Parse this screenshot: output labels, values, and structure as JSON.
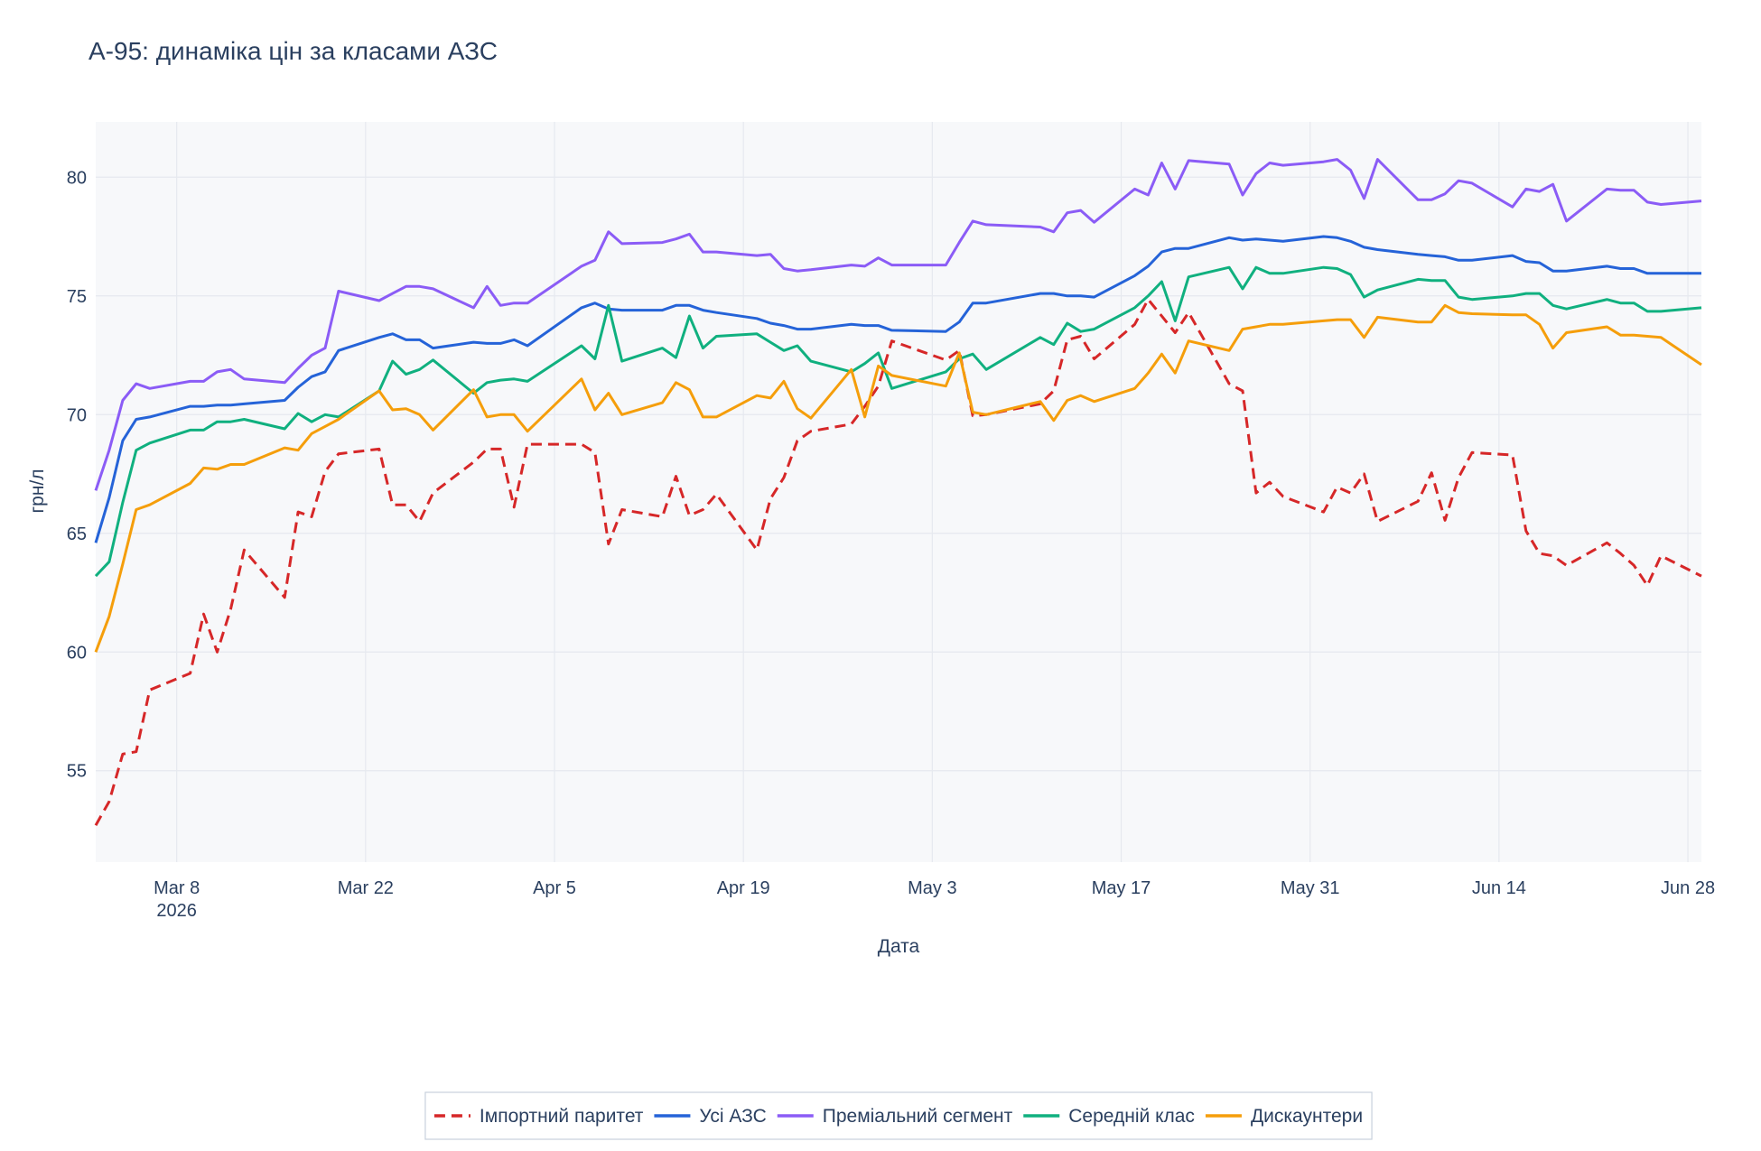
{
  "chart_data": {
    "type": "line",
    "title": "А-95: динаміка цін за класами АЗС",
    "x_label": "Дата",
    "y_label": "грн/л",
    "grid": true,
    "legend": "bottom",
    "xlim": [
      "2026-03-02",
      "2026-06-29"
    ],
    "ylim": [
      51.15,
      82.33
    ],
    "yticks": [
      55,
      60,
      65,
      70,
      75,
      80
    ],
    "xticks": [
      {
        "value": "2026-03-08",
        "label": "Mar 8\n2026"
      },
      {
        "value": "2026-03-22",
        "label": "Mar 22"
      },
      {
        "value": "2026-04-05",
        "label": "Apr 5"
      },
      {
        "value": "2026-04-19",
        "label": "Apr 19"
      },
      {
        "value": "2026-05-03",
        "label": "May 3"
      },
      {
        "value": "2026-05-17",
        "label": "May 17"
      },
      {
        "value": "2026-05-31",
        "label": "May 31"
      },
      {
        "value": "2026-06-14",
        "label": "Jun 14"
      },
      {
        "value": "2026-06-28",
        "label": "Jun 28"
      }
    ],
    "x": [
      "2026-03-02",
      "2026-03-03",
      "2026-03-04",
      "2026-03-05",
      "2026-03-06",
      "2026-03-09",
      "2026-03-10",
      "2026-03-11",
      "2026-03-12",
      "2026-03-13",
      "2026-03-16",
      "2026-03-17",
      "2026-03-18",
      "2026-03-19",
      "2026-03-20",
      "2026-03-23",
      "2026-03-24",
      "2026-03-25",
      "2026-03-26",
      "2026-03-27",
      "2026-03-30",
      "2026-03-31",
      "2026-04-01",
      "2026-04-02",
      "2026-04-03",
      "2026-04-07",
      "2026-04-08",
      "2026-04-09",
      "2026-04-10",
      "2026-04-13",
      "2026-04-14",
      "2026-04-15",
      "2026-04-16",
      "2026-04-17",
      "2026-04-20",
      "2026-04-21",
      "2026-04-22",
      "2026-04-23",
      "2026-04-24",
      "2026-04-27",
      "2026-04-28",
      "2026-04-29",
      "2026-04-30",
      "2026-05-04",
      "2026-05-05",
      "2026-05-06",
      "2026-05-07",
      "2026-05-11",
      "2026-05-12",
      "2026-05-13",
      "2026-05-14",
      "2026-05-15",
      "2026-05-18",
      "2026-05-19",
      "2026-05-20",
      "2026-05-21",
      "2026-05-22",
      "2026-05-25",
      "2026-05-26",
      "2026-05-27",
      "2026-05-28",
      "2026-05-29",
      "2026-06-01",
      "2026-06-02",
      "2026-06-03",
      "2026-06-04",
      "2026-06-05",
      "2026-06-08",
      "2026-06-09",
      "2026-06-10",
      "2026-06-11",
      "2026-06-12",
      "2026-06-15",
      "2026-06-16",
      "2026-06-17",
      "2026-06-18",
      "2026-06-19",
      "2026-06-22",
      "2026-06-23",
      "2026-06-24",
      "2026-06-25",
      "2026-06-26",
      "2026-06-29"
    ],
    "series": [
      {
        "name": "Імпортний паритет",
        "color": "#d62728",
        "dash": "dash",
        "values": [
          52.7,
          53.7,
          55.7,
          55.8,
          58.4,
          59.1,
          61.6,
          60.0,
          61.8,
          64.3,
          62.3,
          65.9,
          65.7,
          67.6,
          68.35,
          68.55,
          66.2,
          66.2,
          65.5,
          66.7,
          68.0,
          68.55,
          68.55,
          66.1,
          68.75,
          68.75,
          68.4,
          64.55,
          66.0,
          65.7,
          67.4,
          65.75,
          66.0,
          66.65,
          64.3,
          66.45,
          67.35,
          68.9,
          69.3,
          69.6,
          70.35,
          71.2,
          73.1,
          72.3,
          72.7,
          69.95,
          70.0,
          70.45,
          71.0,
          73.15,
          73.3,
          72.35,
          73.8,
          74.85,
          74.15,
          73.45,
          74.3,
          71.3,
          71.0,
          66.7,
          67.15,
          66.55,
          65.9,
          66.95,
          66.7,
          67.5,
          65.5,
          66.35,
          67.55,
          65.55,
          67.35,
          68.4,
          68.3,
          65.1,
          64.15,
          64.05,
          63.65,
          64.6,
          64.15,
          63.65,
          62.8,
          64.05,
          63.2
        ]
      },
      {
        "name": "Усі АЗС",
        "color": "#2563d8",
        "values": [
          64.6,
          66.5,
          68.9,
          69.8,
          69.9,
          70.35,
          70.35,
          70.4,
          70.4,
          70.45,
          70.6,
          71.15,
          71.6,
          71.8,
          72.7,
          73.25,
          73.4,
          73.15,
          73.15,
          72.8,
          73.05,
          73.0,
          73.0,
          73.15,
          72.9,
          74.5,
          74.7,
          74.45,
          74.4,
          74.4,
          74.6,
          74.6,
          74.4,
          74.3,
          74.05,
          73.85,
          73.75,
          73.6,
          73.6,
          73.8,
          73.75,
          73.75,
          73.55,
          73.5,
          73.9,
          74.7,
          74.7,
          75.1,
          75.1,
          75.0,
          75.0,
          74.95,
          75.85,
          76.25,
          76.85,
          77.0,
          77.0,
          77.45,
          77.35,
          77.4,
          77.35,
          77.3,
          77.5,
          77.45,
          77.3,
          77.05,
          76.95,
          76.75,
          76.7,
          76.65,
          76.5,
          76.5,
          76.7,
          76.45,
          76.4,
          76.05,
          76.05,
          76.25,
          76.15,
          76.15,
          75.95,
          75.95,
          75.95
        ]
      },
      {
        "name": "Преміальний сегмент",
        "color": "#8b5cf6",
        "values": [
          66.8,
          68.5,
          70.6,
          71.3,
          71.1,
          71.4,
          71.4,
          71.8,
          71.9,
          71.5,
          71.35,
          71.95,
          72.5,
          72.8,
          75.2,
          74.8,
          75.1,
          75.4,
          75.4,
          75.3,
          74.5,
          75.4,
          74.6,
          74.7,
          74.7,
          76.25,
          76.5,
          77.7,
          77.2,
          77.25,
          77.4,
          77.6,
          76.85,
          76.85,
          76.7,
          76.75,
          76.15,
          76.05,
          76.1,
          76.3,
          76.25,
          76.6,
          76.3,
          76.3,
          77.25,
          78.15,
          78.0,
          77.9,
          77.7,
          78.5,
          78.6,
          78.1,
          79.5,
          79.25,
          80.6,
          79.5,
          80.7,
          80.55,
          79.25,
          80.15,
          80.6,
          80.5,
          80.65,
          80.75,
          80.3,
          79.1,
          80.75,
          79.05,
          79.05,
          79.3,
          79.85,
          79.75,
          78.75,
          79.5,
          79.4,
          79.7,
          78.15,
          79.5,
          79.45,
          79.45,
          78.95,
          78.85,
          79.0
        ]
      },
      {
        "name": "Середній клас",
        "color": "#10b07f",
        "values": [
          63.2,
          63.8,
          66.3,
          68.5,
          68.8,
          69.35,
          69.35,
          69.7,
          69.7,
          69.8,
          69.4,
          70.05,
          69.7,
          70.0,
          69.9,
          71.0,
          72.25,
          71.7,
          71.9,
          72.3,
          70.9,
          71.35,
          71.45,
          71.5,
          71.4,
          72.9,
          72.35,
          74.6,
          72.25,
          72.8,
          72.4,
          74.15,
          72.8,
          73.3,
          73.4,
          73.05,
          72.7,
          72.9,
          72.25,
          71.8,
          72.15,
          72.6,
          71.1,
          71.8,
          72.35,
          72.55,
          71.9,
          73.25,
          72.95,
          73.85,
          73.5,
          73.6,
          74.5,
          75.0,
          75.6,
          73.95,
          75.8,
          76.2,
          75.3,
          76.2,
          75.95,
          75.95,
          76.2,
          76.15,
          75.9,
          74.95,
          75.25,
          75.7,
          75.65,
          75.65,
          74.95,
          74.85,
          75.0,
          75.1,
          75.1,
          74.6,
          74.45,
          74.85,
          74.7,
          74.7,
          74.35,
          74.35,
          74.5
        ]
      },
      {
        "name": "Дискаунтери",
        "color": "#f59e0b",
        "values": [
          60.0,
          61.5,
          63.7,
          66.0,
          66.2,
          67.1,
          67.75,
          67.7,
          67.9,
          67.9,
          68.6,
          68.5,
          69.2,
          69.5,
          69.8,
          71.0,
          70.2,
          70.25,
          70.0,
          69.35,
          71.05,
          69.9,
          70.0,
          70.0,
          69.3,
          71.5,
          70.2,
          70.9,
          70.0,
          70.5,
          71.35,
          71.05,
          69.9,
          69.9,
          70.8,
          70.7,
          71.4,
          70.25,
          69.85,
          71.9,
          69.9,
          72.05,
          71.65,
          71.2,
          72.6,
          70.1,
          70.0,
          70.55,
          69.75,
          70.6,
          70.8,
          70.55,
          71.1,
          71.75,
          72.55,
          71.75,
          73.1,
          72.7,
          73.6,
          73.7,
          73.8,
          73.8,
          73.95,
          74.0,
          74.0,
          73.25,
          74.1,
          73.9,
          73.9,
          74.6,
          74.3,
          74.25,
          74.2,
          74.2,
          73.8,
          72.8,
          73.45,
          73.7,
          73.35,
          73.35,
          73.3,
          73.25,
          72.1
        ]
      }
    ]
  }
}
